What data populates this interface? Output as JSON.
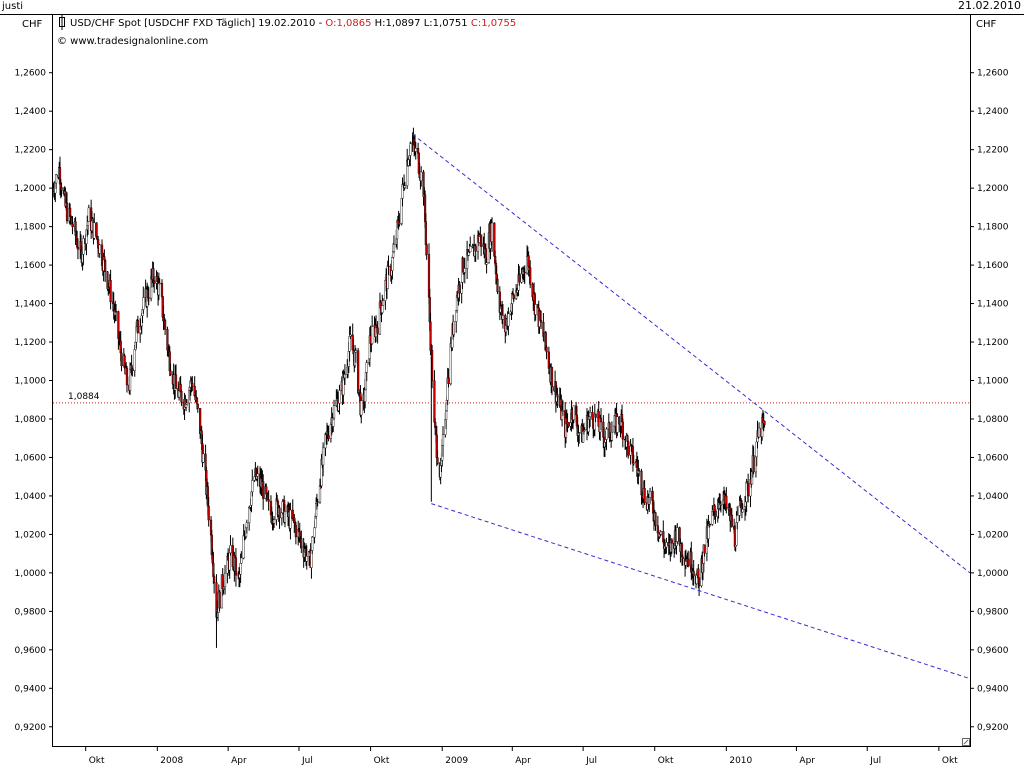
{
  "top_bar": {
    "left_text": "justi",
    "right_date": "21.02.2010"
  },
  "header": {
    "symbol_text": "USD/CHF Spot [USDCHF FXD  Täglich] 19.02.2010 - ",
    "ohlc": {
      "open": "O:1,0865",
      "high": "H:1,0897",
      "low": "L:1,0751",
      "close": "C:1,0755"
    },
    "website": "© www.tradesignalonline.com"
  },
  "colors": {
    "candle_down": "#c00000",
    "candle_up": "#ffffff",
    "wick": "#000000",
    "trendline": "#3a2bd0",
    "reference_line": "#d02020",
    "ohlc_open_close": "#d02020",
    "ohlc_high_low": "#000000"
  },
  "chart_data": {
    "type": "candlestick",
    "currency_left": "CHF",
    "currency_right": "CHF",
    "ylim": [
      0.91,
      1.29
    ],
    "y_ticks": [
      0.92,
      0.94,
      0.96,
      0.98,
      1.0,
      1.02,
      1.04,
      1.06,
      1.08,
      1.1,
      1.12,
      1.14,
      1.16,
      1.18,
      1.2,
      1.22,
      1.24,
      1.26
    ],
    "y_tick_labels": [
      "0,9200",
      "0,9400",
      "0,9600",
      "0,9800",
      "1,0000",
      "1,0200",
      "1,0400",
      "1,0600",
      "1,0800",
      "1,1000",
      "1,1200",
      "1,1400",
      "1,1600",
      "1,1800",
      "1,2000",
      "1,2200",
      "1,2400",
      "1,2600"
    ],
    "x_range": [
      "2007-08-20",
      "2010-11-10"
    ],
    "x_ticks": [
      {
        "date": "2007-10-01",
        "label": "Okt"
      },
      {
        "date": "2008-01-01",
        "label": "2008"
      },
      {
        "date": "2008-04-01",
        "label": "Apr"
      },
      {
        "date": "2008-07-01",
        "label": "Jul"
      },
      {
        "date": "2008-10-01",
        "label": "Okt"
      },
      {
        "date": "2009-01-01",
        "label": "2009"
      },
      {
        "date": "2009-04-01",
        "label": "Apr"
      },
      {
        "date": "2009-07-01",
        "label": "Jul"
      },
      {
        "date": "2009-10-01",
        "label": "Okt"
      },
      {
        "date": "2010-01-01",
        "label": "2010"
      },
      {
        "date": "2010-04-01",
        "label": "Apr"
      },
      {
        "date": "2010-07-01",
        "label": "Jul"
      },
      {
        "date": "2010-10-01",
        "label": "Okt"
      }
    ],
    "price_path": [
      [
        "2007-08-20",
        1.2
      ],
      [
        "2007-08-28",
        1.21
      ],
      [
        "2007-09-05",
        1.19
      ],
      [
        "2007-09-15",
        1.18
      ],
      [
        "2007-09-25",
        1.165
      ],
      [
        "2007-10-05",
        1.185
      ],
      [
        "2007-10-15",
        1.175
      ],
      [
        "2007-10-25",
        1.16
      ],
      [
        "2007-11-05",
        1.14
      ],
      [
        "2007-11-15",
        1.115
      ],
      [
        "2007-11-25",
        1.095
      ],
      [
        "2007-12-05",
        1.125
      ],
      [
        "2007-12-15",
        1.14
      ],
      [
        "2007-12-28",
        1.155
      ],
      [
        "2008-01-05",
        1.145
      ],
      [
        "2008-01-15",
        1.115
      ],
      [
        "2008-01-25",
        1.095
      ],
      [
        "2008-02-05",
        1.09
      ],
      [
        "2008-02-15",
        1.1
      ],
      [
        "2008-02-25",
        1.075
      ],
      [
        "2008-03-05",
        1.04
      ],
      [
        "2008-03-12",
        1.01
      ],
      [
        "2008-03-17",
        0.98
      ],
      [
        "2008-03-25",
        0.995
      ],
      [
        "2008-04-05",
        1.01
      ],
      [
        "2008-04-15",
        0.995
      ],
      [
        "2008-04-25",
        1.03
      ],
      [
        "2008-05-05",
        1.05
      ],
      [
        "2008-05-15",
        1.045
      ],
      [
        "2008-05-25",
        1.03
      ],
      [
        "2008-06-05",
        1.035
      ],
      [
        "2008-06-15",
        1.03
      ],
      [
        "2008-06-25",
        1.025
      ],
      [
        "2008-07-05",
        1.015
      ],
      [
        "2008-07-15",
        1.005
      ],
      [
        "2008-07-25",
        1.04
      ],
      [
        "2008-08-05",
        1.07
      ],
      [
        "2008-08-15",
        1.085
      ],
      [
        "2008-08-25",
        1.095
      ],
      [
        "2008-09-05",
        1.12
      ],
      [
        "2008-09-12",
        1.11
      ],
      [
        "2008-09-20",
        1.08
      ],
      [
        "2008-09-30",
        1.12
      ],
      [
        "2008-10-10",
        1.13
      ],
      [
        "2008-10-20",
        1.15
      ],
      [
        "2008-10-28",
        1.16
      ],
      [
        "2008-11-05",
        1.18
      ],
      [
        "2008-11-15",
        1.21
      ],
      [
        "2008-11-22",
        1.225
      ],
      [
        "2008-12-01",
        1.215
      ],
      [
        "2008-12-08",
        1.2
      ],
      [
        "2008-12-15",
        1.14
      ],
      [
        "2008-12-22",
        1.075
      ],
      [
        "2008-12-30",
        1.05
      ],
      [
        "2009-01-08",
        1.1
      ],
      [
        "2009-01-18",
        1.14
      ],
      [
        "2009-01-28",
        1.16
      ],
      [
        "2009-02-08",
        1.165
      ],
      [
        "2009-02-18",
        1.175
      ],
      [
        "2009-02-26",
        1.165
      ],
      [
        "2009-03-06",
        1.18
      ],
      [
        "2009-03-14",
        1.145
      ],
      [
        "2009-03-22",
        1.125
      ],
      [
        "2009-03-30",
        1.14
      ],
      [
        "2009-04-10",
        1.15
      ],
      [
        "2009-04-20",
        1.165
      ],
      [
        "2009-04-30",
        1.14
      ],
      [
        "2009-05-10",
        1.125
      ],
      [
        "2009-05-20",
        1.105
      ],
      [
        "2009-05-30",
        1.09
      ],
      [
        "2009-06-08",
        1.075
      ],
      [
        "2009-06-18",
        1.085
      ],
      [
        "2009-06-28",
        1.07
      ],
      [
        "2009-07-08",
        1.08
      ],
      [
        "2009-07-18",
        1.08
      ],
      [
        "2009-07-28",
        1.07
      ],
      [
        "2009-08-08",
        1.075
      ],
      [
        "2009-08-18",
        1.08
      ],
      [
        "2009-08-28",
        1.065
      ],
      [
        "2009-09-08",
        1.055
      ],
      [
        "2009-09-18",
        1.04
      ],
      [
        "2009-09-28",
        1.035
      ],
      [
        "2009-10-08",
        1.02
      ],
      [
        "2009-10-18",
        1.01
      ],
      [
        "2009-10-28",
        1.02
      ],
      [
        "2009-11-08",
        1.01
      ],
      [
        "2009-11-18",
        1.005
      ],
      [
        "2009-11-26",
        0.995
      ],
      [
        "2009-12-05",
        1.015
      ],
      [
        "2009-12-15",
        1.03
      ],
      [
        "2009-12-25",
        1.04
      ],
      [
        "2010-01-05",
        1.03
      ],
      [
        "2010-01-12",
        1.018
      ],
      [
        "2010-01-20",
        1.035
      ],
      [
        "2010-01-30",
        1.045
      ],
      [
        "2010-02-08",
        1.065
      ],
      [
        "2010-02-14",
        1.075
      ],
      [
        "2010-02-19",
        1.0755
      ]
    ],
    "spikes": [
      {
        "date": "2008-03-17",
        "low": 0.961
      },
      {
        "date": "2008-11-24",
        "high": 1.229
      },
      {
        "date": "2008-12-18",
        "low": 1.037
      },
      {
        "date": "2009-11-26",
        "low": 0.992
      }
    ],
    "trend_lines": [
      {
        "from": [
          "2008-11-24",
          1.228
        ],
        "to": [
          "2010-11-10",
          1.0
        ]
      },
      {
        "from": [
          "2008-12-18",
          1.036
        ],
        "to": [
          "2010-11-10",
          0.945
        ]
      }
    ],
    "reference_line": {
      "value": 1.0884,
      "label": "1,0884"
    }
  }
}
